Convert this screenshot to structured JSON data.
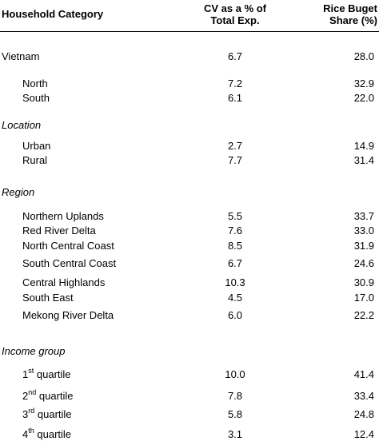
{
  "header": {
    "category": "Household Category",
    "cv_line1": "CV as a % of",
    "cv_line2": "Total Exp.",
    "rice_line1": "Rice Buget",
    "rice_line2": "Share (%)"
  },
  "rows": [
    {
      "label": "Vietnam",
      "cv": "6.7",
      "rice": "28.0"
    },
    {
      "label": "North",
      "cv": "7.2",
      "rice": "32.9"
    },
    {
      "label": "South",
      "cv": "6.1",
      "rice": "22.0"
    },
    {
      "section": "Location"
    },
    {
      "label": "Urban",
      "cv": "2.7",
      "rice": "14.9"
    },
    {
      "label": "Rural",
      "cv": "7.7",
      "rice": "31.4"
    },
    {
      "section": "Region"
    },
    {
      "label": "Northern Uplands",
      "cv": "5.5",
      "rice": "33.7"
    },
    {
      "label": "Red River Delta",
      "cv": "7.6",
      "rice": "33.0"
    },
    {
      "label": "North Central Coast",
      "cv": "8.5",
      "rice": "31.9"
    },
    {
      "label": "South Central Coast",
      "cv": "6.7",
      "rice": "24.6"
    },
    {
      "label": "Central Highlands",
      "cv": "10.3",
      "rice": "30.9"
    },
    {
      "label": "South East",
      "cv": "4.5",
      "rice": "17.0"
    },
    {
      "label": "Mekong River Delta",
      "cv": "6.0",
      "rice": "22.2"
    },
    {
      "section": "Income group"
    },
    {
      "num": "1",
      "sup": "st",
      "word": "quartile",
      "cv": "10.0",
      "rice": "41.4"
    },
    {
      "num": "2",
      "sup": "nd",
      "word": "quartile",
      "cv": "7.8",
      "rice": "33.4"
    },
    {
      "num": "3",
      "sup": "rd",
      "word": "quartile",
      "cv": "5.8",
      "rice": "24.8"
    },
    {
      "num": "4",
      "sup": "th",
      "word": "quartile",
      "cv": "3.1",
      "rice": "12.4"
    }
  ]
}
